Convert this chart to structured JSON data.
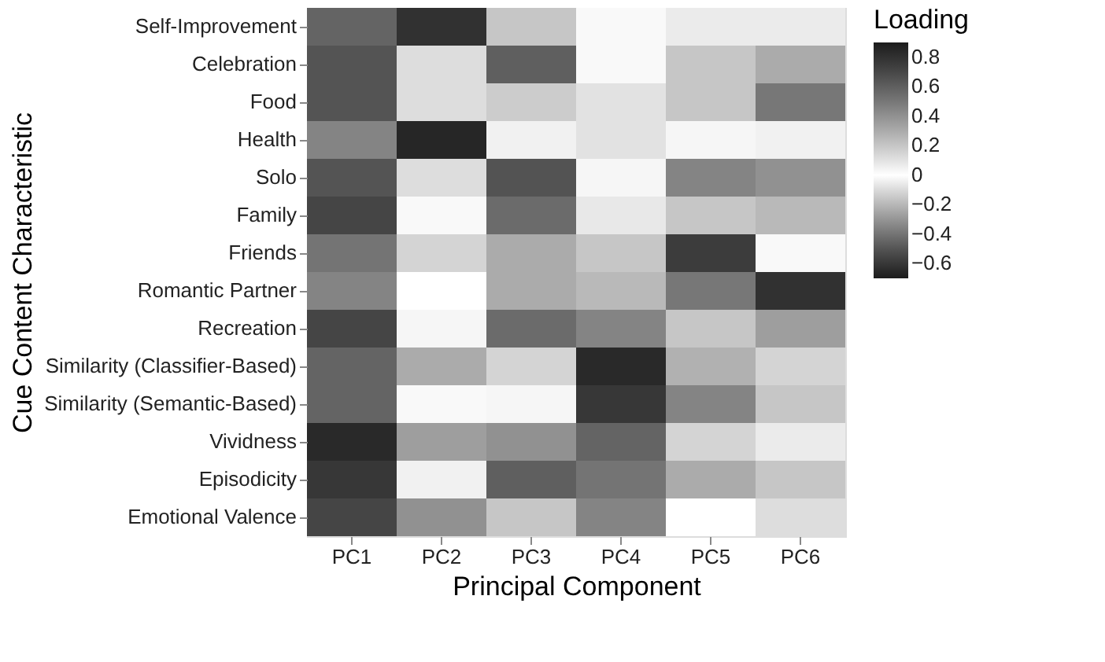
{
  "chart_data": {
    "type": "heatmap",
    "xlabel": "Principal Component",
    "ylabel": "Cue Content Characteristic",
    "legend_title": "Loading",
    "grid": false,
    "categories": [
      "PC1",
      "PC2",
      "PC3",
      "PC4",
      "PC5",
      "PC6"
    ],
    "y_categories": [
      "Self-Improvement",
      "Celebration",
      "Food",
      "Health",
      "Solo",
      "Family",
      "Friends",
      "Romantic Partner",
      "Recreation",
      "Similarity (Classifier-Based)",
      "Similarity (Semantic-Based)",
      "Vividness",
      "Episodicity",
      "Emotional Valence"
    ],
    "cells": [
      [
        -0.45,
        0.8,
        0.2,
        0.02,
        0.07,
        0.07
      ],
      [
        -0.5,
        0.12,
        0.6,
        0.02,
        0.2,
        0.3
      ],
      [
        -0.5,
        0.12,
        0.18,
        0.1,
        0.2,
        0.5
      ],
      [
        -0.35,
        0.85,
        0.05,
        0.1,
        0.03,
        0.05
      ],
      [
        -0.5,
        0.12,
        0.65,
        0.03,
        0.45,
        0.4
      ],
      [
        -0.55,
        0.02,
        0.55,
        0.08,
        0.2,
        0.25
      ],
      [
        -0.4,
        0.15,
        0.3,
        0.2,
        0.75,
        0.02
      ],
      [
        -0.35,
        0.0,
        0.3,
        0.25,
        0.5,
        0.8
      ],
      [
        -0.55,
        0.03,
        0.55,
        0.45,
        0.2,
        0.35
      ],
      [
        -0.45,
        0.3,
        0.15,
        -0.65,
        0.28,
        0.15
      ],
      [
        -0.45,
        0.02,
        0.03,
        -0.6,
        0.45,
        0.2
      ],
      [
        -0.65,
        0.35,
        0.4,
        -0.45,
        0.15,
        0.07
      ],
      [
        -0.6,
        0.05,
        0.6,
        -0.4,
        0.3,
        0.2
      ],
      [
        -0.55,
        0.4,
        0.2,
        -0.35,
        0.0,
        0.12
      ]
    ],
    "clim": [
      -0.7,
      0.9
    ],
    "cticks": [
      0.8,
      0.6,
      0.4,
      0.2,
      0,
      -0.2,
      -0.4,
      -0.6
    ]
  }
}
